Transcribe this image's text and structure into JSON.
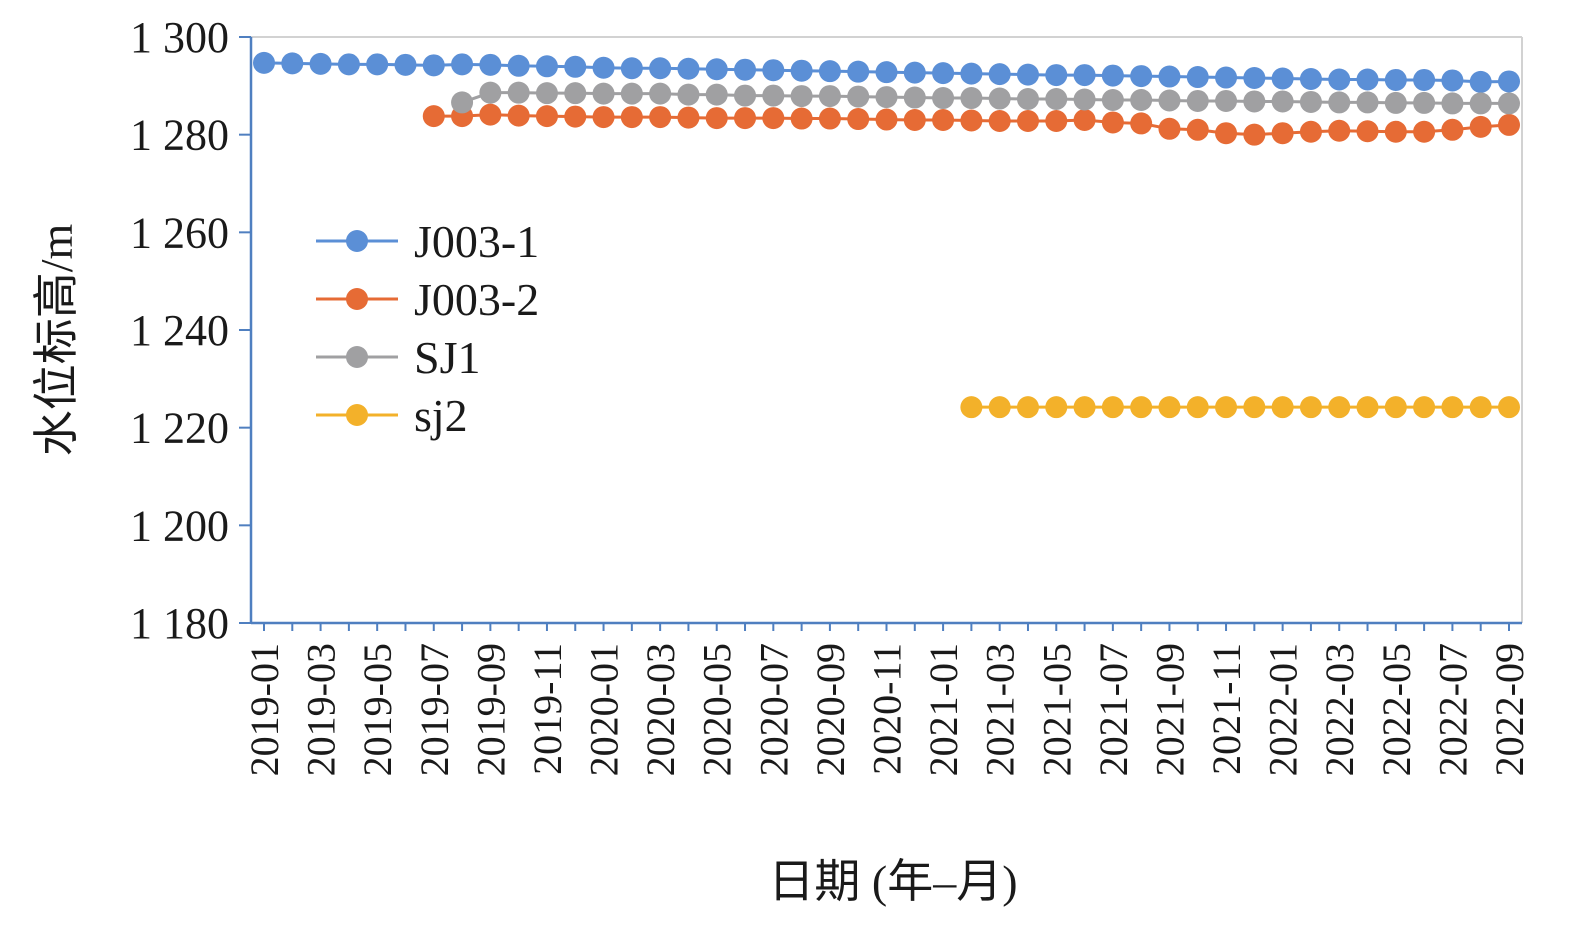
{
  "chart_data": {
    "type": "line",
    "title": "",
    "xlabel": "日期 (年–月)",
    "ylabel": "水位标高/m",
    "ylim": [
      1180,
      1300
    ],
    "yticks": [
      1180,
      1200,
      1220,
      1240,
      1260,
      1280,
      1300
    ],
    "ytick_labels": [
      "1 180",
      "1 200",
      "1 220",
      "1 240",
      "1 260",
      "1 280",
      "1 300"
    ],
    "x": [
      "2019-01",
      "2019-02",
      "2019-03",
      "2019-04",
      "2019-05",
      "2019-06",
      "2019-07",
      "2019-08",
      "2019-09",
      "2019-10",
      "2019-11",
      "2019-12",
      "2020-01",
      "2020-02",
      "2020-03",
      "2020-04",
      "2020-05",
      "2020-06",
      "2020-07",
      "2020-08",
      "2020-09",
      "2020-10",
      "2020-11",
      "2020-12",
      "2021-01",
      "2021-02",
      "2021-03",
      "2021-04",
      "2021-05",
      "2021-06",
      "2021-07",
      "2021-08",
      "2021-09",
      "2021-10",
      "2021-11",
      "2021-12",
      "2022-01",
      "2022-02",
      "2022-03",
      "2022-04",
      "2022-05",
      "2022-06",
      "2022-07",
      "2022-08",
      "2022-09"
    ],
    "xtick_labels": [
      "2019-01",
      "2019-03",
      "2019-05",
      "2019-07",
      "2019-09",
      "2019-11",
      "2020-01",
      "2020-03",
      "2020-05",
      "2020-07",
      "2020-09",
      "2020-11",
      "2021-01",
      "2021-03",
      "2021-05",
      "2021-07",
      "2021-09",
      "2021-11",
      "2022-01",
      "2022-03",
      "2022-05",
      "2022-07",
      "2022-09"
    ],
    "grid": false,
    "legend_position": "left-middle",
    "series": [
      {
        "name": "J003-1",
        "color": "#5b8fd6",
        "values": [
          1294.7,
          1294.6,
          1294.5,
          1294.4,
          1294.4,
          1294.3,
          1294.2,
          1294.4,
          1294.3,
          1294.1,
          1294.0,
          1293.9,
          1293.7,
          1293.6,
          1293.6,
          1293.5,
          1293.4,
          1293.3,
          1293.2,
          1293.1,
          1293.0,
          1292.9,
          1292.8,
          1292.7,
          1292.6,
          1292.5,
          1292.4,
          1292.3,
          1292.2,
          1292.2,
          1292.1,
          1292.0,
          1291.9,
          1291.8,
          1291.7,
          1291.6,
          1291.5,
          1291.4,
          1291.3,
          1291.3,
          1291.2,
          1291.2,
          1291.1,
          1290.8,
          1290.9
        ]
      },
      {
        "name": "J003-2",
        "color": "#e66b35",
        "values": [
          null,
          null,
          null,
          null,
          null,
          null,
          1283.8,
          1283.8,
          1284.1,
          1283.9,
          1283.8,
          1283.7,
          1283.6,
          1283.6,
          1283.6,
          1283.5,
          1283.4,
          1283.4,
          1283.4,
          1283.3,
          1283.3,
          1283.2,
          1283.1,
          1283.0,
          1283.0,
          1282.9,
          1282.8,
          1282.8,
          1282.8,
          1283.0,
          1282.5,
          1282.3,
          1281.2,
          1281.0,
          1280.3,
          1280.0,
          1280.3,
          1280.6,
          1280.8,
          1280.7,
          1280.6,
          1280.6,
          1281.0,
          1281.6,
          1282.0
        ]
      },
      {
        "name": "SJ1",
        "color": "#a0a0a2",
        "values": [
          null,
          null,
          null,
          null,
          null,
          null,
          null,
          1286.6,
          1288.6,
          1288.6,
          1288.5,
          1288.5,
          1288.4,
          1288.4,
          1288.4,
          1288.2,
          1288.2,
          1288.0,
          1288.0,
          1287.9,
          1287.9,
          1287.8,
          1287.7,
          1287.6,
          1287.5,
          1287.5,
          1287.4,
          1287.3,
          1287.3,
          1287.2,
          1287.1,
          1287.1,
          1287.0,
          1286.9,
          1286.9,
          1286.8,
          1286.8,
          1286.7,
          1286.6,
          1286.6,
          1286.5,
          1286.5,
          1286.4,
          1286.4,
          1286.4
        ]
      },
      {
        "name": "sj2",
        "color": "#f3b12a",
        "values": [
          null,
          null,
          null,
          null,
          null,
          null,
          null,
          null,
          null,
          null,
          null,
          null,
          null,
          null,
          null,
          null,
          null,
          null,
          null,
          null,
          null,
          null,
          null,
          null,
          null,
          1224.2,
          1224.2,
          1224.2,
          1224.2,
          1224.2,
          1224.2,
          1224.2,
          1224.2,
          1224.2,
          1224.2,
          1224.2,
          1224.2,
          1224.2,
          1224.2,
          1224.2,
          1224.2,
          1224.2,
          1224.2,
          1224.2,
          1224.2
        ]
      }
    ]
  }
}
